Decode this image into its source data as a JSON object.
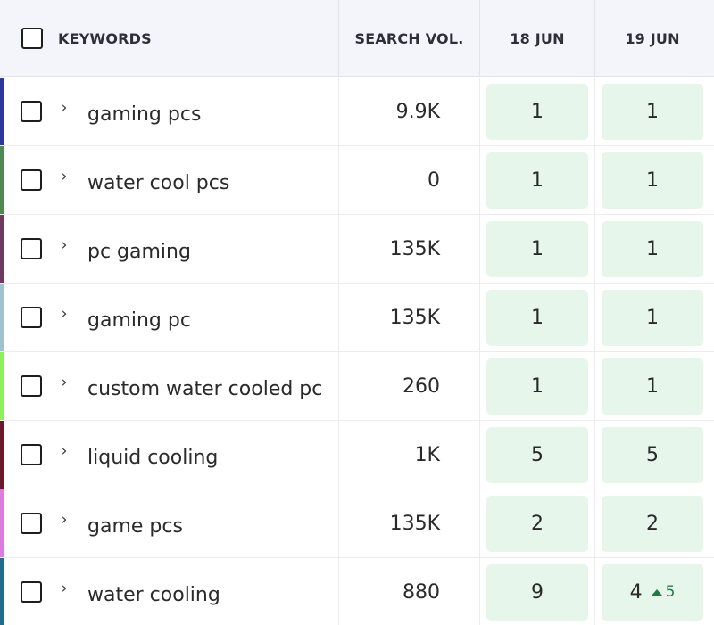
{
  "header": {
    "keywords_label": "KEYWORDS",
    "volume_label": "SEARCH VOL.",
    "date1_label": "18 JUN",
    "date2_label": "19 JUN"
  },
  "rows": [
    {
      "keyword": "gaming pcs",
      "volume": "9.9K",
      "pos1": "1",
      "pos2": "1",
      "stripe_color": "#2b3a9c"
    },
    {
      "keyword": "water cool pcs",
      "volume": "0",
      "pos1": "1",
      "pos2": "1",
      "stripe_color": "#4f8a55"
    },
    {
      "keyword": "pc gaming",
      "volume": "135K",
      "pos1": "1",
      "pos2": "1",
      "stripe_color": "#6e3a5e"
    },
    {
      "keyword": "gaming pc",
      "volume": "135K",
      "pos1": "1",
      "pos2": "1",
      "stripe_color": "#9fc2cc"
    },
    {
      "keyword": "custom water cooled pc",
      "volume": "260",
      "pos1": "1",
      "pos2": "1",
      "stripe_color": "#8bf05a"
    },
    {
      "keyword": "liquid cooling",
      "volume": "1K",
      "pos1": "5",
      "pos2": "5",
      "stripe_color": "#6a1a2a"
    },
    {
      "keyword": "game pcs",
      "volume": "135K",
      "pos1": "2",
      "pos2": "2",
      "stripe_color": "#e07ae0"
    },
    {
      "keyword": "water cooling",
      "volume": "880",
      "pos1": "9",
      "pos2": "4",
      "change": "5",
      "change_direction": "up",
      "stripe_color": "#1f6e8c"
    }
  ],
  "icons": {
    "expand": "chevron-right-icon",
    "change": "triangle-up-icon"
  },
  "colors": {
    "position_bg": "#e7f6ea",
    "positive_change": "#1f7a45",
    "header_bg": "#f4f5fa"
  }
}
